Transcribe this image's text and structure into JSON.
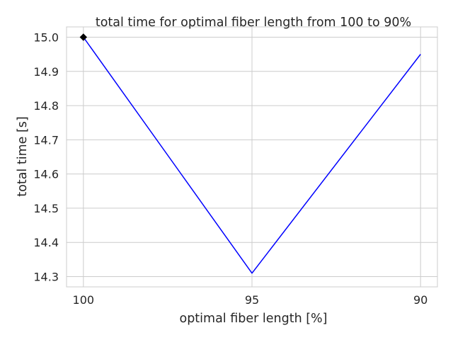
{
  "chart_data": {
    "type": "line",
    "title": "total time for optimal fiber length from 100 to 90%",
    "xlabel": "optimal fiber length [%]",
    "ylabel": "total time [s]",
    "x": [
      100,
      95,
      90
    ],
    "x_tick_labels": [
      "100",
      "95",
      "90"
    ],
    "x_axis_inverted": true,
    "xlim": [
      100.5,
      89.5
    ],
    "ylim": [
      14.27,
      15.03
    ],
    "y_ticks": [
      14.3,
      14.4,
      14.5,
      14.6,
      14.7,
      14.8,
      14.9,
      15.0
    ],
    "y_tick_labels": [
      "14.3",
      "14.4",
      "14.5",
      "14.6",
      "14.7",
      "14.8",
      "14.9",
      "15.0"
    ],
    "series": [
      {
        "values": [
          15.0,
          14.31,
          14.95
        ],
        "color": "#0000ff"
      }
    ],
    "markers": [
      {
        "x": 100,
        "y": 15.0,
        "shape": "diamond",
        "color": "#000000"
      }
    ],
    "grid": true,
    "grid_color": "#cccccc",
    "legend": "none"
  }
}
